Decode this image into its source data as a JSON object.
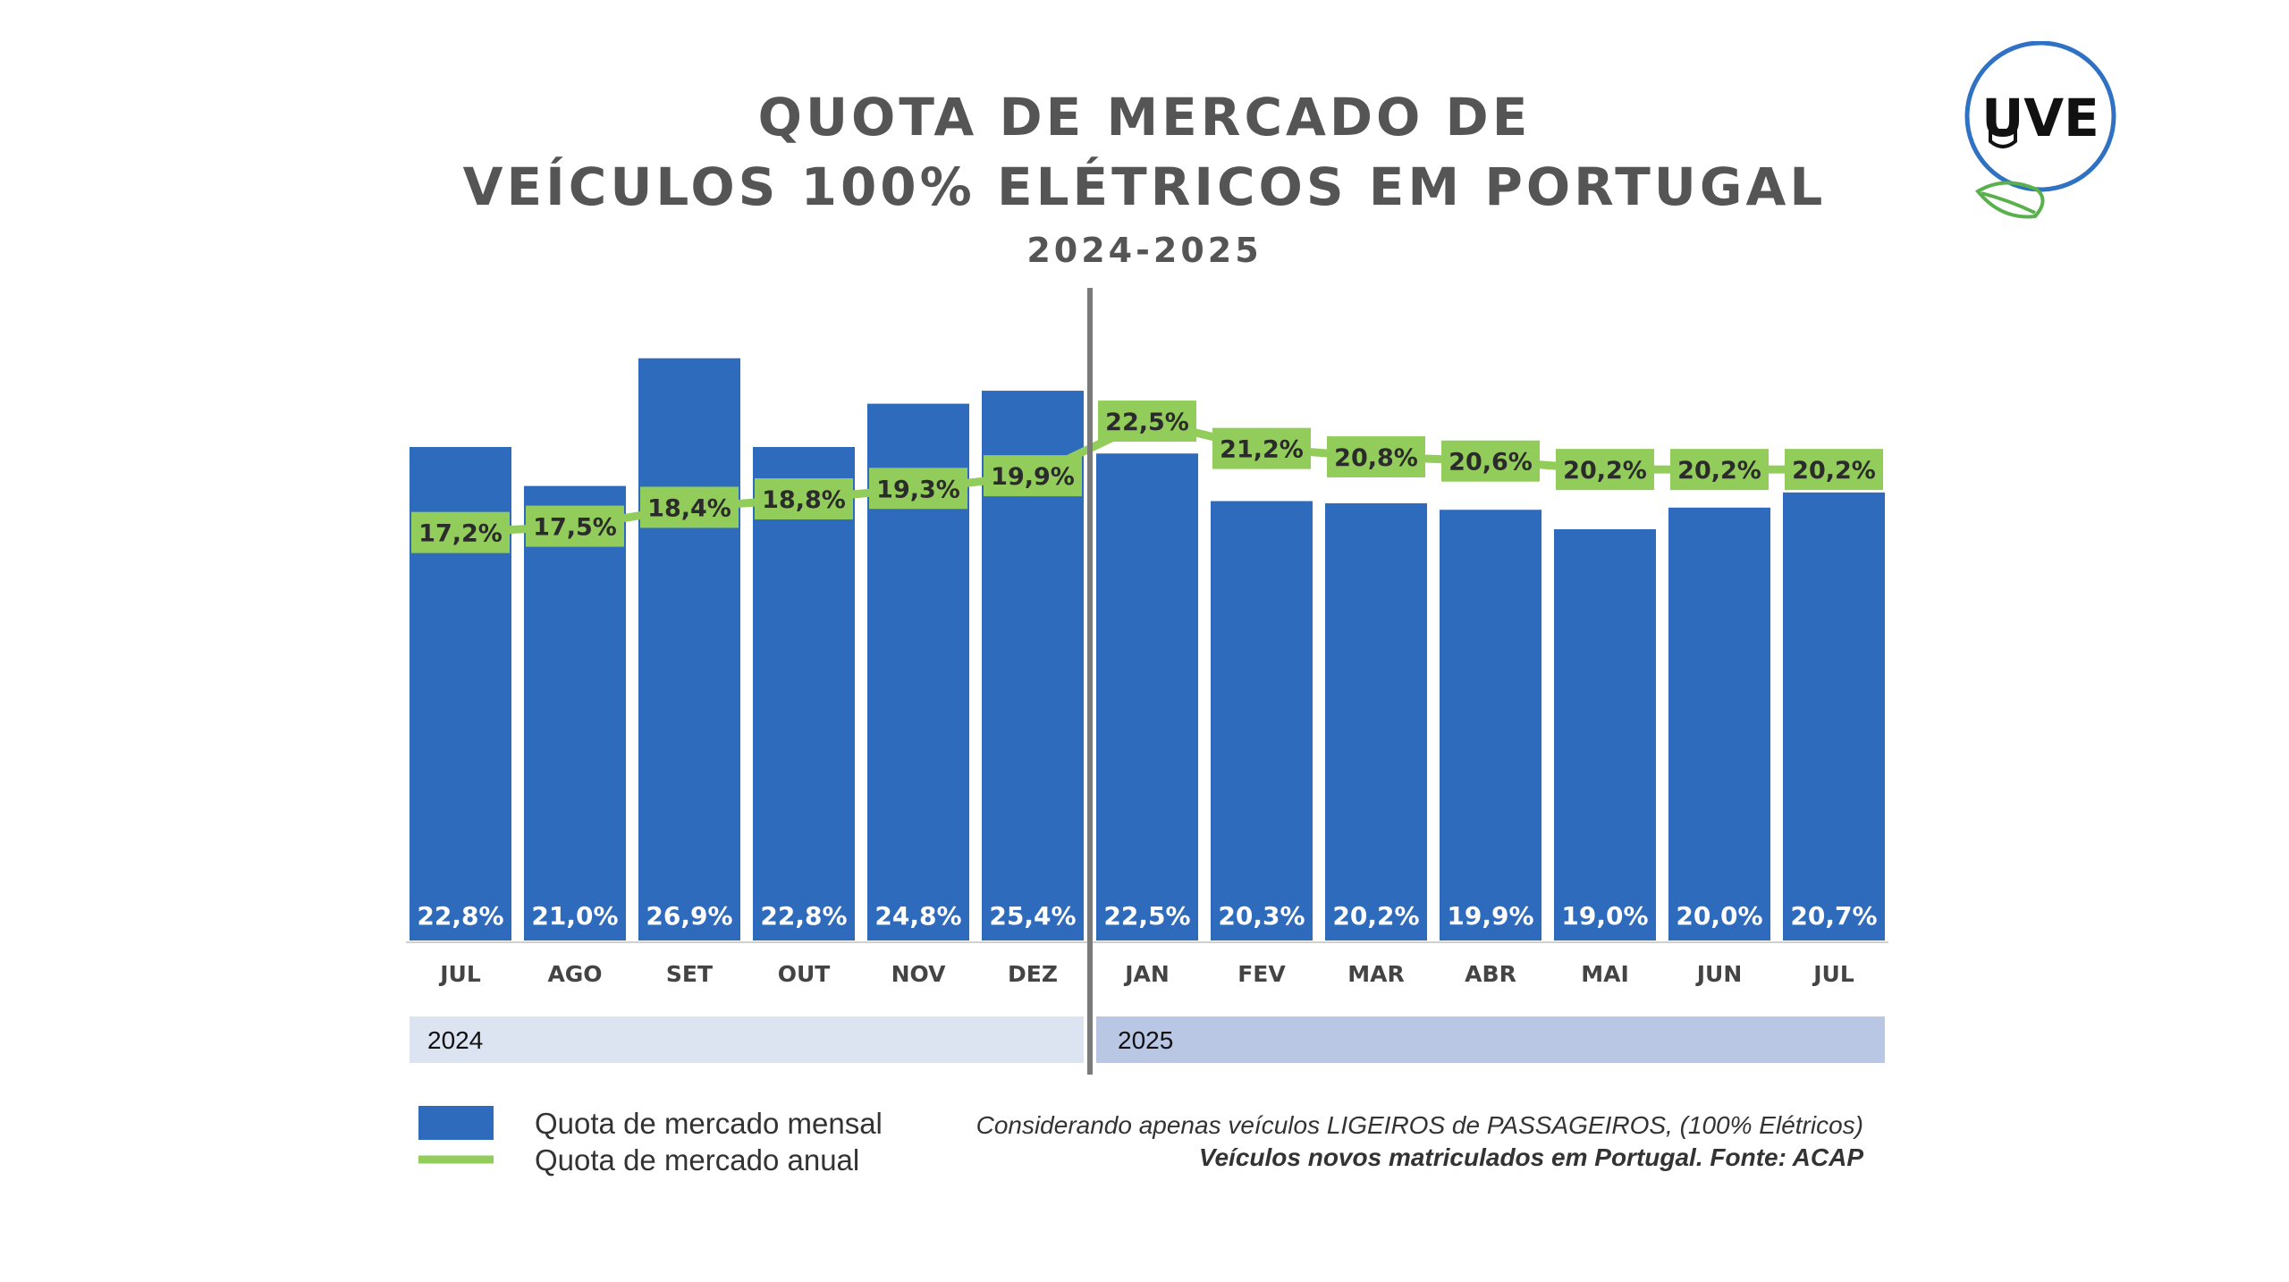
{
  "title": {
    "line1": "QUOTA DE MERCADO DE",
    "line2": "VEÍCULOS 100% ELÉTRICOS EM PORTUGAL",
    "subtitle": "2024-2025"
  },
  "logo": {
    "text": "UVE"
  },
  "colors": {
    "bar": "#2e6bbd",
    "line": "#92cd5c",
    "band2024": "#dce3f1",
    "band2025": "#b9c7e4",
    "divider": "#7a7a7a"
  },
  "chart_data": {
    "type": "bar",
    "categories": [
      "JUL",
      "AGO",
      "SET",
      "OUT",
      "NOV",
      "DEZ",
      "JAN",
      "FEV",
      "MAR",
      "ABR",
      "MAI",
      "JUN",
      "JUL"
    ],
    "series": [
      {
        "name": "Quota de mercado mensal",
        "type": "bar",
        "values": [
          22.8,
          21.0,
          26.9,
          22.8,
          24.8,
          25.4,
          22.5,
          20.3,
          20.2,
          19.9,
          19.0,
          20.0,
          20.7
        ],
        "labels": [
          "22,8%",
          "21,0%",
          "26,9%",
          "22,8%",
          "24,8%",
          "25,4%",
          "22,5%",
          "20,3%",
          "20,2%",
          "19,9%",
          "19,0%",
          "20,0%",
          "20,7%"
        ]
      },
      {
        "name": "Quota de mercado anual",
        "type": "line",
        "values": [
          17.2,
          17.5,
          18.4,
          18.8,
          19.3,
          19.9,
          22.5,
          21.2,
          20.8,
          20.6,
          20.2,
          20.2,
          20.2
        ],
        "labels": [
          "17,2%",
          "17,5%",
          "18,4%",
          "18,8%",
          "19,3%",
          "19,9%",
          "22,5%",
          "21,2%",
          "20,8%",
          "20,6%",
          "20,2%",
          "20,2%",
          "20,2%"
        ]
      }
    ],
    "year_groups": [
      {
        "label": "2024",
        "span": 6
      },
      {
        "label": "2025",
        "span": 7
      }
    ],
    "ylim": [
      0,
      28.5
    ],
    "legend_position": "bottom-left"
  },
  "legend": {
    "monthly": "Quota de mercado mensal",
    "annual": "Quota de mercado anual"
  },
  "notes": {
    "line1": "Considerando apenas veículos LIGEIROS de PASSAGEIROS, (100% Elétricos)",
    "line2": "Veículos novos matriculados em Portugal. Fonte: ACAP"
  }
}
